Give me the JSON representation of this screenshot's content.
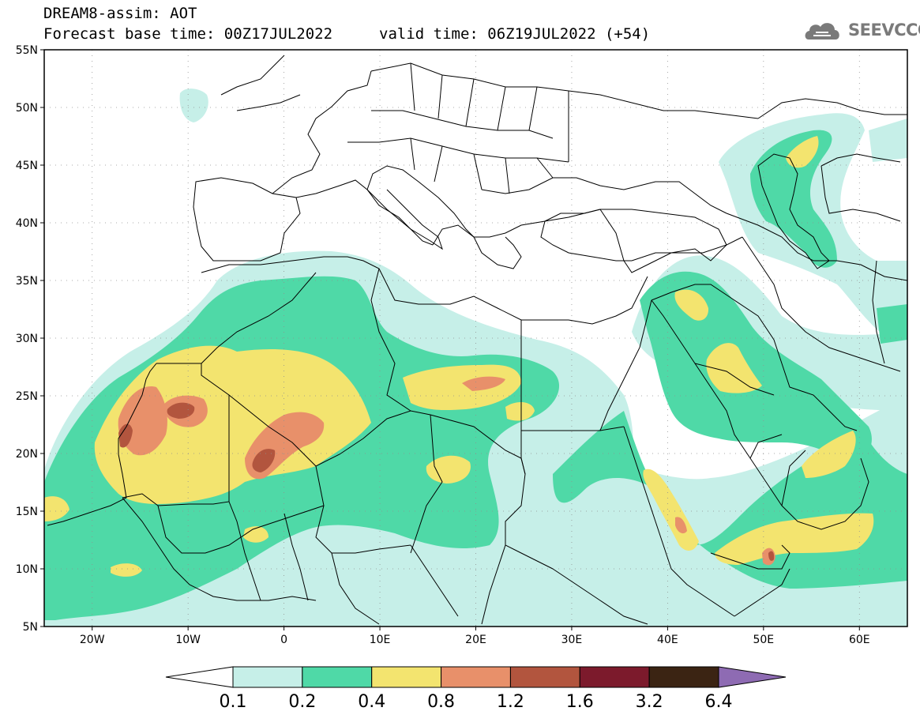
{
  "header": {
    "title_line1": "DREAM8-assim: AOT",
    "title_line2": "Forecast base time: 00Z17JUL2022",
    "valid_time": "valid time: 06Z19JUL2022 (+54)",
    "logo_text": "SEEVCCC"
  },
  "map": {
    "projection": "equirectangular",
    "lon_range": [
      -25,
      65
    ],
    "lat_range": [
      5,
      55
    ],
    "lat_labels": [
      "55N",
      "50N",
      "45N",
      "40N",
      "35N",
      "30N",
      "25N",
      "20N",
      "15N",
      "10N",
      "5N"
    ],
    "lon_labels": [
      "20W",
      "10W",
      "0",
      "10E",
      "20E",
      "30E",
      "40E",
      "50E",
      "60E"
    ],
    "grid": "dotted"
  },
  "colorbar": {
    "levels": [
      "0.1",
      "0.2",
      "0.4",
      "0.8",
      "1.2",
      "1.6",
      "3.2",
      "6.4"
    ],
    "colors": [
      "#ffffff",
      "#c6efe8",
      "#4fd9a7",
      "#f3e46f",
      "#e8906a",
      "#b2553e",
      "#7c1a2c",
      "#3b2413",
      "#8e6bb3"
    ]
  },
  "icons": {
    "logo": "cloud-logo-icon"
  }
}
